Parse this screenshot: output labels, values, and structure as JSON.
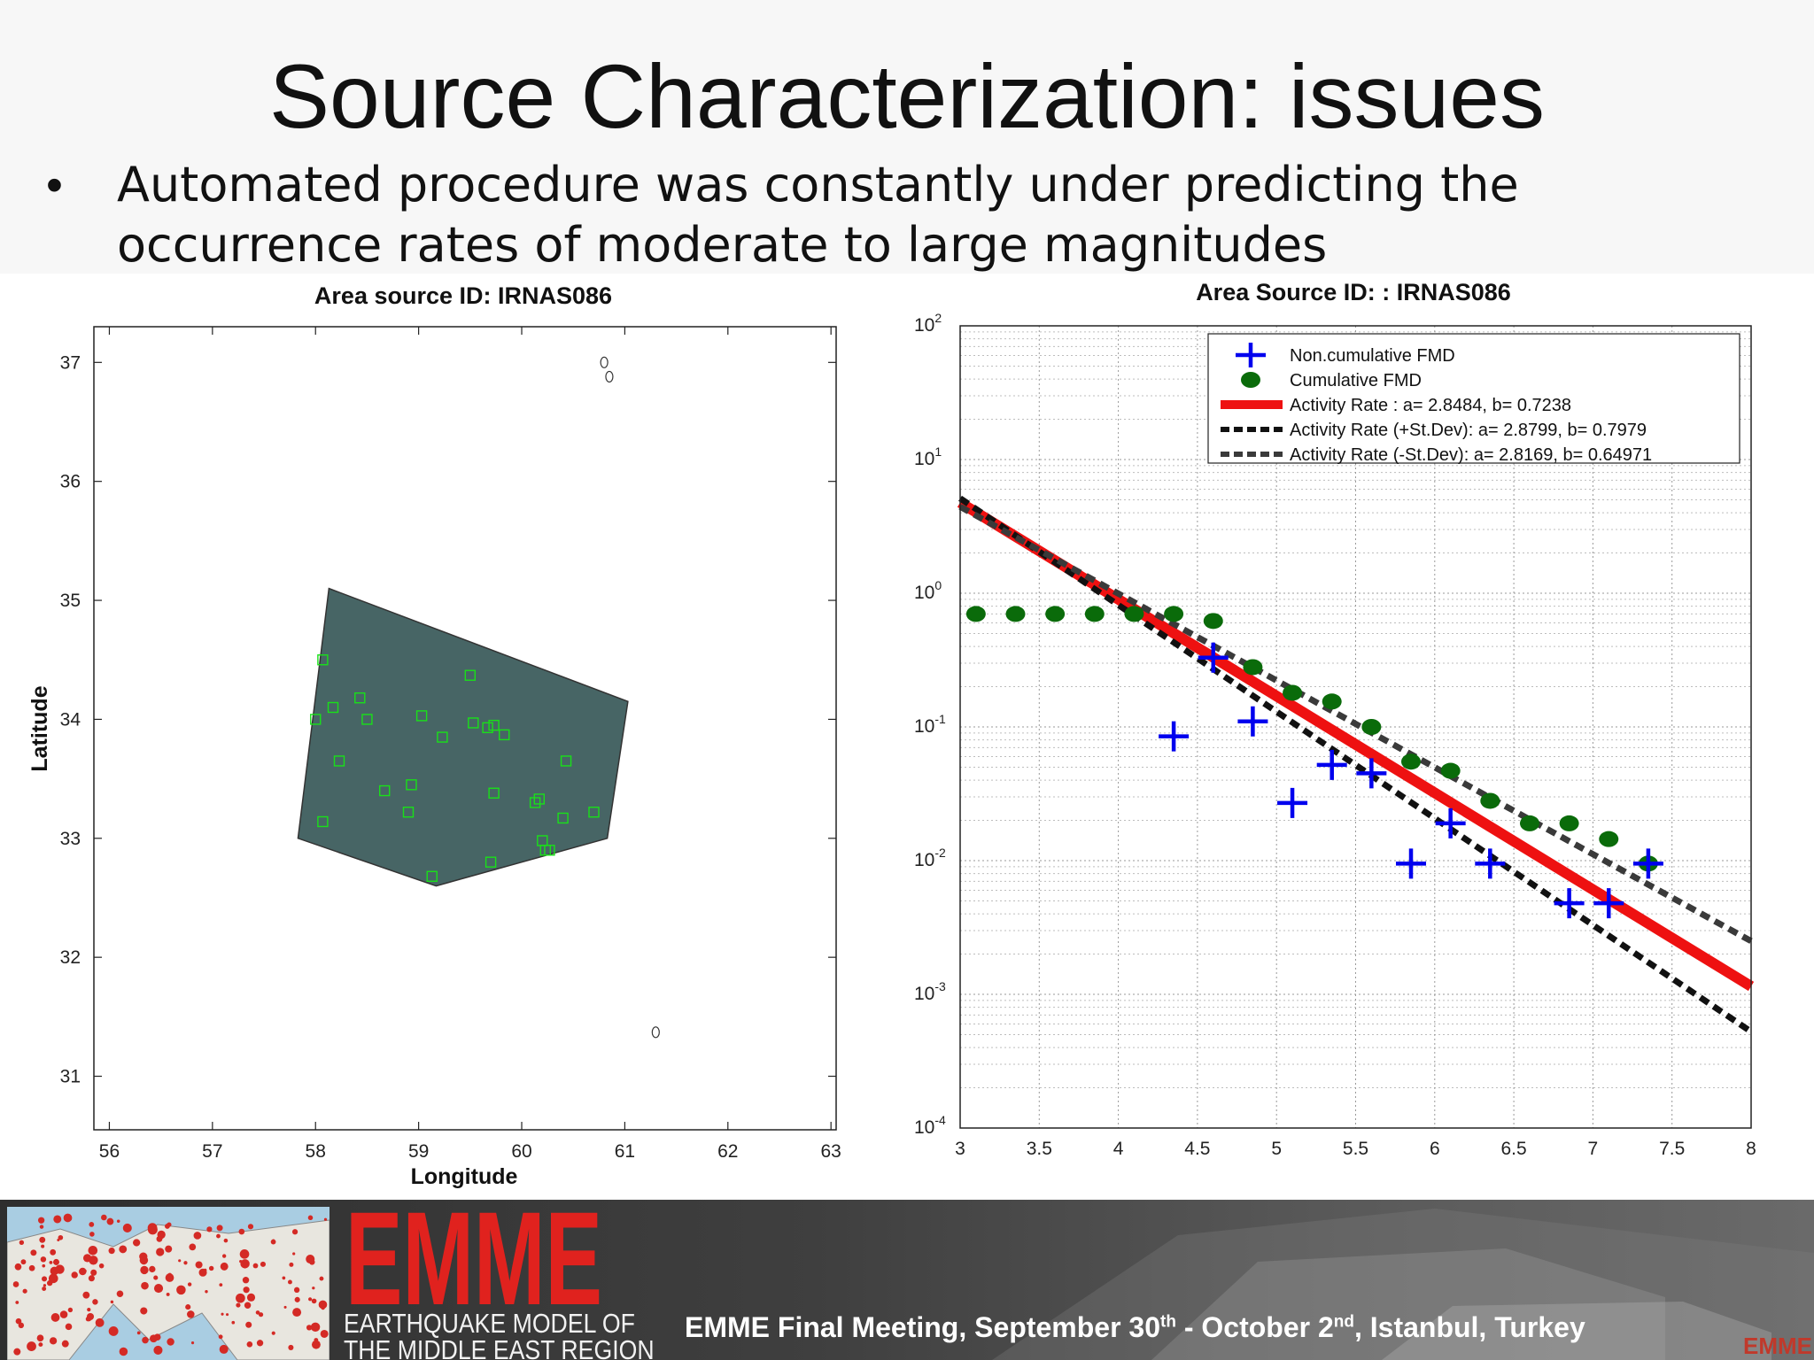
{
  "slide": {
    "title": "Source Characterization: issues",
    "bullet_symbol": "•",
    "bullet_line1": "Automated procedure was constantly under predicting the",
    "bullet_line2": "occurrence rates of moderate to large magnitudes"
  },
  "chart_data": [
    {
      "type": "scatter",
      "title": "Area source ID: IRNAS086",
      "xlabel": "Longitude",
      "ylabel": "Latitude",
      "xlim": [
        55.85,
        63.05
      ],
      "ylim": [
        30.55,
        37.3
      ],
      "xticks": [
        56,
        57,
        58,
        59,
        60,
        61,
        62,
        63
      ],
      "yticks": [
        31,
        32,
        33,
        34,
        35,
        36,
        37
      ],
      "grid": false,
      "colors": {
        "polygon_fill": "#476565",
        "marker": "#19e019"
      },
      "source_polygon": [
        [
          58.13,
          35.1
        ],
        [
          61.03,
          34.15
        ],
        [
          60.83,
          33.0
        ],
        [
          59.17,
          32.6
        ],
        [
          57.83,
          33.0
        ]
      ],
      "epicenters": [
        [
          58.07,
          34.5
        ],
        [
          58.0,
          34.0
        ],
        [
          58.17,
          34.1
        ],
        [
          58.43,
          34.18
        ],
        [
          58.5,
          34.0
        ],
        [
          59.03,
          34.03
        ],
        [
          59.5,
          34.37
        ],
        [
          59.23,
          33.85
        ],
        [
          59.53,
          33.97
        ],
        [
          59.67,
          33.93
        ],
        [
          59.73,
          33.95
        ],
        [
          59.83,
          33.87
        ],
        [
          58.23,
          33.65
        ],
        [
          58.67,
          33.4
        ],
        [
          58.93,
          33.45
        ],
        [
          58.9,
          33.22
        ],
        [
          58.07,
          33.14
        ],
        [
          59.73,
          33.38
        ],
        [
          60.13,
          33.3
        ],
        [
          60.17,
          33.33
        ],
        [
          60.43,
          33.65
        ],
        [
          60.4,
          33.17
        ],
        [
          60.7,
          33.22
        ],
        [
          60.2,
          32.98
        ],
        [
          60.23,
          32.9
        ],
        [
          60.27,
          32.9
        ],
        [
          59.7,
          32.8
        ],
        [
          59.13,
          32.68
        ]
      ],
      "coastline_marks": [
        [
          60.8,
          37.0
        ],
        [
          60.85,
          36.88
        ],
        [
          61.3,
          31.37
        ]
      ]
    },
    {
      "type": "scatter",
      "title": "Area Source ID: : IRNAS086",
      "xlabel": "",
      "ylabel": "",
      "xlim": [
        3,
        8
      ],
      "ylim": [
        0.0001,
        100
      ],
      "yscale": "log",
      "xticks": [
        3,
        3.5,
        4,
        4.5,
        5,
        5.5,
        6,
        6.5,
        7,
        7.5,
        8
      ],
      "ytick_labels": [
        {
          "value": 100,
          "base": "10",
          "exp": "2"
        },
        {
          "value": 10,
          "base": "10",
          "exp": "1"
        },
        {
          "value": 1,
          "base": "10",
          "exp": "0"
        },
        {
          "value": 0.1,
          "base": "10",
          "exp": "-1"
        },
        {
          "value": 0.01,
          "base": "10",
          "exp": "-2"
        },
        {
          "value": 0.001,
          "base": "10",
          "exp": "-3"
        },
        {
          "value": 0.0001,
          "base": "10",
          "exp": "-4"
        }
      ],
      "grid": true,
      "legend_position": "top-right",
      "series": [
        {
          "name": "Non.cumulative FMD",
          "marker": "plus",
          "color": "#0000ee",
          "points": [
            [
              4.35,
              0.085
            ],
            [
              4.6,
              0.33
            ],
            [
              4.85,
              0.11
            ],
            [
              5.1,
              0.027
            ],
            [
              5.35,
              0.052
            ],
            [
              5.6,
              0.045
            ],
            [
              5.85,
              0.0095
            ],
            [
              6.1,
              0.019
            ],
            [
              6.35,
              0.0095
            ],
            [
              6.85,
              0.0048
            ],
            [
              7.1,
              0.0048
            ],
            [
              7.35,
              0.0095
            ]
          ]
        },
        {
          "name": "Cumulative FMD",
          "marker": "circle",
          "color": "#0a6b0a",
          "points": [
            [
              3.1,
              0.7
            ],
            [
              3.35,
              0.7
            ],
            [
              3.6,
              0.7
            ],
            [
              3.85,
              0.7
            ],
            [
              4.1,
              0.7
            ],
            [
              4.35,
              0.7
            ],
            [
              4.6,
              0.62
            ],
            [
              4.85,
              0.28
            ],
            [
              5.1,
              0.18
            ],
            [
              5.35,
              0.155
            ],
            [
              5.6,
              0.1
            ],
            [
              5.85,
              0.055
            ],
            [
              6.1,
              0.047
            ],
            [
              6.35,
              0.028
            ],
            [
              6.6,
              0.019
            ],
            [
              6.85,
              0.019
            ],
            [
              7.1,
              0.0145
            ],
            [
              7.35,
              0.0095
            ]
          ]
        },
        {
          "name": "Activity Rate : a= 2.8484, b= 0.7238",
          "line": "solid",
          "color": "#ee1111",
          "a": 2.8484,
          "b": 0.7238
        },
        {
          "name": "Activity Rate (+St.Dev): a= 2.8799, b= 0.7979",
          "line": "dashed",
          "color": "#111111",
          "a": 2.8799,
          "b": 0.7979
        },
        {
          "name": "Activity Rate (-St.Dev): a= 2.8169, b= 0.64971",
          "line": "dashed",
          "color": "#3a3a3a",
          "a": 2.8169,
          "b": 0.64971
        }
      ]
    }
  ],
  "footer": {
    "logo_text": "EMME",
    "logo_subtitle_1": "EARTHQUAKE MODEL OF",
    "logo_subtitle_2": "THE MIDDLE EAST REGION",
    "meeting_part1": "EMME Final Meeting, September 30",
    "meeting_sup1": "th",
    "meeting_part2": " - October 2",
    "meeting_sup2": "nd",
    "meeting_part3": ", Istanbul, Turkey",
    "corner_mark": "EMME",
    "colors": {
      "logo_red": "#e0221e",
      "dot_red": "#d42a25",
      "map_water": "#a9cde2"
    }
  }
}
